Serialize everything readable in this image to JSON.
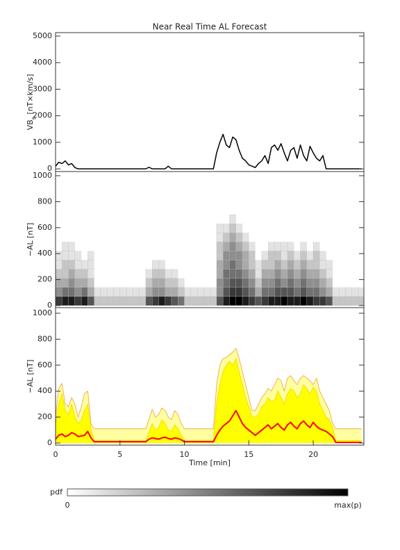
{
  "chart_data": [
    {
      "type": "line",
      "title": "Near Real Time AL Forecast",
      "ylabel": {
        "main": "VB",
        "sub": "s",
        "unit": " [nT×km/s]"
      },
      "xlim": [
        0,
        23.93
      ],
      "ylim": [
        -100,
        5130
      ],
      "yticks": [
        0,
        1000,
        2000,
        3000,
        4000,
        5000
      ],
      "x": [
        0,
        0.25,
        0.5,
        0.75,
        1,
        1.25,
        1.5,
        1.75,
        2,
        2.25,
        2.5,
        2.75,
        3,
        3.25,
        3.5,
        3.75,
        4,
        4.25,
        4.5,
        4.75,
        5,
        5.25,
        5.5,
        5.75,
        6,
        6.25,
        6.5,
        6.75,
        7,
        7.25,
        7.5,
        7.75,
        8,
        8.25,
        8.5,
        8.75,
        9,
        9.25,
        9.5,
        9.75,
        10,
        10.25,
        10.5,
        10.75,
        11,
        11.25,
        11.5,
        11.75,
        12,
        12.25,
        12.5,
        12.75,
        13,
        13.25,
        13.5,
        13.75,
        14,
        14.25,
        14.5,
        14.75,
        15,
        15.25,
        15.5,
        15.75,
        16,
        16.25,
        16.5,
        16.75,
        17,
        17.25,
        17.5,
        17.75,
        18,
        18.25,
        18.5,
        18.75,
        19,
        19.25,
        19.5,
        19.75,
        20,
        20.25,
        20.5,
        20.75,
        21,
        21.25,
        21.5,
        21.75,
        22,
        22.25,
        22.5,
        22.75,
        23,
        23.25,
        23.5,
        23.75
      ],
      "series": [
        {
          "color": "#000000",
          "values": [
            100,
            250,
            200,
            300,
            150,
            200,
            50,
            0,
            0,
            0,
            0,
            0,
            0,
            0,
            0,
            0,
            0,
            0,
            0,
            0,
            0,
            0,
            0,
            0,
            0,
            0,
            0,
            0,
            0,
            60,
            0,
            0,
            0,
            0,
            0,
            100,
            0,
            0,
            0,
            0,
            0,
            0,
            0,
            0,
            0,
            0,
            0,
            0,
            0,
            0,
            600,
            1000,
            1300,
            900,
            800,
            1200,
            1100,
            700,
            400,
            300,
            150,
            100,
            50,
            200,
            300,
            500,
            200,
            800,
            900,
            700,
            950,
            600,
            300,
            700,
            800,
            400,
            900,
            500,
            300,
            850,
            600,
            400,
            300,
            500,
            0,
            0,
            0,
            0,
            0,
            0,
            0,
            0,
            0,
            0,
            0,
            0
          ]
        }
      ]
    },
    {
      "type": "heatmap",
      "ylabel": "−AL [nT]",
      "xlim": [
        0,
        23.93
      ],
      "ylim": [
        -16,
        1032
      ],
      "yticks": [
        0,
        200,
        400,
        600,
        800,
        1000
      ],
      "zlim": [
        0,
        9
      ],
      "x_bins": [
        0,
        0.5,
        1,
        1.5,
        2,
        2.5,
        3,
        3.5,
        4,
        4.5,
        5,
        5.5,
        6,
        6.5,
        7,
        7.5,
        8,
        8.5,
        9,
        9.5,
        10,
        10.5,
        11,
        11.5,
        12,
        12.5,
        13,
        13.5,
        14,
        14.5,
        15,
        15.5,
        16,
        16.5,
        17,
        17.5,
        18,
        18.5,
        19,
        19.5,
        20,
        20.5,
        21,
        21.5,
        22,
        22.5,
        23,
        23.5,
        24
      ],
      "y_bins": [
        0,
        70,
        140,
        210,
        280,
        350,
        420,
        490,
        560,
        630,
        700
      ],
      "z": [
        [
          7,
          8,
          8,
          7,
          8,
          6,
          2,
          2,
          2,
          2,
          2,
          2,
          2,
          2,
          6,
          7,
          8,
          7,
          6,
          5,
          2,
          2,
          2,
          2,
          2,
          6,
          8,
          9,
          9,
          8,
          7,
          6,
          7,
          8,
          8,
          9,
          8,
          8,
          9,
          8,
          7,
          7,
          6,
          2,
          2,
          2,
          2,
          2
        ],
        [
          4,
          5,
          5,
          4,
          5,
          3,
          1,
          1,
          1,
          1,
          1,
          1,
          1,
          1,
          3,
          4,
          4,
          3,
          3,
          2,
          1,
          1,
          1,
          1,
          1,
          4,
          6,
          7,
          7,
          6,
          5,
          3,
          5,
          5,
          6,
          6,
          6,
          5,
          6,
          5,
          5,
          4,
          3,
          1,
          1,
          1,
          1,
          1
        ],
        [
          3,
          3,
          4,
          3,
          3,
          2,
          0,
          0,
          0,
          0,
          0,
          0,
          0,
          0,
          2,
          3,
          3,
          2,
          2,
          1,
          0,
          0,
          0,
          0,
          0,
          4,
          5,
          6,
          6,
          5,
          4,
          2,
          4,
          4,
          5,
          4,
          5,
          4,
          5,
          4,
          4,
          3,
          2,
          0,
          0,
          0,
          0,
          0
        ],
        [
          2,
          2,
          3,
          2,
          2,
          1,
          0,
          0,
          0,
          0,
          0,
          0,
          0,
          0,
          1,
          2,
          2,
          1,
          1,
          0,
          0,
          0,
          0,
          0,
          0,
          3,
          5,
          5,
          5,
          4,
          3,
          1,
          3,
          3,
          4,
          3,
          4,
          3,
          4,
          3,
          3,
          2,
          1,
          0,
          0,
          0,
          0,
          0
        ],
        [
          1,
          2,
          2,
          1,
          1,
          1,
          0,
          0,
          0,
          0,
          0,
          0,
          0,
          0,
          0,
          1,
          1,
          0,
          0,
          0,
          0,
          0,
          0,
          0,
          0,
          3,
          4,
          5,
          4,
          3,
          2,
          1,
          2,
          2,
          3,
          2,
          3,
          2,
          3,
          2,
          2,
          1,
          1,
          0,
          0,
          0,
          0,
          0
        ],
        [
          1,
          1,
          1,
          1,
          0,
          1,
          0,
          0,
          0,
          0,
          0,
          0,
          0,
          0,
          0,
          0,
          0,
          0,
          0,
          0,
          0,
          0,
          0,
          0,
          0,
          2,
          4,
          4,
          4,
          3,
          2,
          0,
          1,
          2,
          2,
          1,
          2,
          1,
          2,
          1,
          2,
          1,
          0,
          0,
          0,
          0,
          0,
          0
        ],
        [
          0,
          1,
          1,
          0,
          0,
          0,
          0,
          0,
          0,
          0,
          0,
          0,
          0,
          0,
          0,
          0,
          0,
          0,
          0,
          0,
          0,
          0,
          0,
          0,
          0,
          2,
          3,
          4,
          3,
          2,
          1,
          0,
          0,
          1,
          1,
          1,
          1,
          0,
          1,
          0,
          1,
          0,
          0,
          0,
          0,
          0,
          0,
          0
        ],
        [
          0,
          0,
          0,
          0,
          0,
          0,
          0,
          0,
          0,
          0,
          0,
          0,
          0,
          0,
          0,
          0,
          0,
          0,
          0,
          0,
          0,
          0,
          0,
          0,
          0,
          1,
          2,
          3,
          2,
          1,
          0,
          0,
          0,
          0,
          0,
          0,
          0,
          0,
          0,
          0,
          0,
          0,
          0,
          0,
          0,
          0,
          0,
          0
        ],
        [
          0,
          0,
          0,
          0,
          0,
          0,
          0,
          0,
          0,
          0,
          0,
          0,
          0,
          0,
          0,
          0,
          0,
          0,
          0,
          0,
          0,
          0,
          0,
          0,
          0,
          1,
          1,
          2,
          1,
          0,
          0,
          0,
          0,
          0,
          0,
          0,
          0,
          0,
          0,
          0,
          0,
          0,
          0,
          0,
          0,
          0,
          0,
          0
        ],
        [
          0,
          0,
          0,
          0,
          0,
          0,
          0,
          0,
          0,
          0,
          0,
          0,
          0,
          0,
          0,
          0,
          0,
          0,
          0,
          0,
          0,
          0,
          0,
          0,
          0,
          0,
          0,
          1,
          0,
          0,
          0,
          0,
          0,
          0,
          0,
          0,
          0,
          0,
          0,
          0,
          0,
          0,
          0,
          0,
          0,
          0,
          0,
          0
        ]
      ],
      "colorbar": {
        "label": "pdf",
        "min_label": "0",
        "max_label": "max(p)"
      }
    },
    {
      "type": "area",
      "ylabel": "−AL [nT]",
      "xlabel": "Time [min]",
      "xlim": [
        0,
        23.93
      ],
      "ylim": [
        -16,
        1043
      ],
      "yticks": [
        0,
        200,
        400,
        600,
        800,
        1000
      ],
      "xticks": [
        0,
        5,
        10,
        15,
        20
      ],
      "x": [
        0,
        0.25,
        0.5,
        0.75,
        1,
        1.25,
        1.5,
        1.75,
        2,
        2.25,
        2.5,
        2.75,
        3,
        3.25,
        3.5,
        3.75,
        4,
        4.25,
        4.5,
        4.75,
        5,
        5.25,
        5.5,
        5.75,
        6,
        6.25,
        6.5,
        6.75,
        7,
        7.25,
        7.5,
        7.75,
        8,
        8.25,
        8.5,
        8.75,
        9,
        9.25,
        9.5,
        9.75,
        10,
        10.25,
        10.5,
        10.75,
        11,
        11.25,
        11.5,
        11.75,
        12,
        12.25,
        12.5,
        12.75,
        13,
        13.25,
        13.5,
        13.75,
        14,
        14.25,
        14.5,
        14.75,
        15,
        15.25,
        15.5,
        15.75,
        16,
        16.25,
        16.5,
        16.75,
        17,
        17.25,
        17.5,
        17.75,
        18,
        18.25,
        18.5,
        18.75,
        19,
        19.25,
        19.5,
        19.75,
        20,
        20.25,
        20.5,
        20.75,
        21,
        21.25,
        21.5,
        21.75,
        22,
        22.25,
        22.5,
        22.75,
        23,
        23.25,
        23.5,
        23.75
      ],
      "series": [
        {
          "color": "#f0a030",
          "fill": "#ffffa0",
          "values": [
            200,
            420,
            460,
            300,
            280,
            350,
            300,
            200,
            280,
            380,
            400,
            150,
            110,
            110,
            110,
            110,
            110,
            110,
            110,
            110,
            110,
            110,
            110,
            110,
            110,
            110,
            110,
            110,
            110,
            180,
            260,
            200,
            220,
            270,
            250,
            200,
            180,
            250,
            220,
            150,
            110,
            110,
            110,
            110,
            110,
            110,
            110,
            110,
            110,
            110,
            450,
            600,
            650,
            660,
            680,
            700,
            730,
            650,
            550,
            450,
            350,
            250,
            250,
            300,
            350,
            380,
            420,
            400,
            450,
            500,
            480,
            400,
            500,
            520,
            480,
            450,
            500,
            520,
            500,
            480,
            450,
            500,
            400,
            350,
            300,
            250,
            150,
            110,
            110,
            110,
            110,
            110,
            110,
            110,
            110,
            110
          ]
        },
        {
          "color": "#f5d000",
          "fill": "#ffff00",
          "values": [
            150,
            300,
            380,
            250,
            220,
            300,
            200,
            150,
            180,
            250,
            300,
            110,
            20,
            20,
            20,
            20,
            20,
            20,
            20,
            20,
            20,
            20,
            20,
            20,
            20,
            20,
            20,
            20,
            20,
            80,
            150,
            100,
            120,
            180,
            150,
            100,
            90,
            140,
            110,
            60,
            20,
            20,
            20,
            20,
            20,
            20,
            20,
            20,
            20,
            20,
            300,
            450,
            550,
            600,
            630,
            600,
            650,
            550,
            450,
            350,
            280,
            200,
            200,
            220,
            280,
            300,
            350,
            320,
            330,
            400,
            350,
            300,
            380,
            420,
            400,
            350,
            380,
            450,
            420,
            380,
            430,
            400,
            300,
            250,
            200,
            180,
            120,
            20,
            20,
            20,
            20,
            20,
            20,
            20,
            20,
            20
          ]
        },
        {
          "color": "#ff0000",
          "values": [
            30,
            60,
            70,
            50,
            60,
            80,
            70,
            50,
            55,
            60,
            90,
            40,
            10,
            10,
            10,
            10,
            10,
            10,
            10,
            10,
            10,
            10,
            10,
            10,
            10,
            10,
            10,
            10,
            10,
            30,
            40,
            35,
            30,
            40,
            45,
            35,
            30,
            40,
            35,
            25,
            10,
            10,
            10,
            10,
            10,
            10,
            10,
            10,
            10,
            10,
            60,
            100,
            130,
            150,
            170,
            210,
            250,
            200,
            150,
            120,
            100,
            80,
            60,
            80,
            100,
            120,
            140,
            110,
            130,
            150,
            120,
            100,
            140,
            160,
            130,
            110,
            150,
            170,
            140,
            120,
            160,
            130,
            110,
            100,
            90,
            70,
            50,
            5,
            5,
            5,
            5,
            5,
            5,
            5,
            5,
            5
          ]
        }
      ]
    }
  ]
}
